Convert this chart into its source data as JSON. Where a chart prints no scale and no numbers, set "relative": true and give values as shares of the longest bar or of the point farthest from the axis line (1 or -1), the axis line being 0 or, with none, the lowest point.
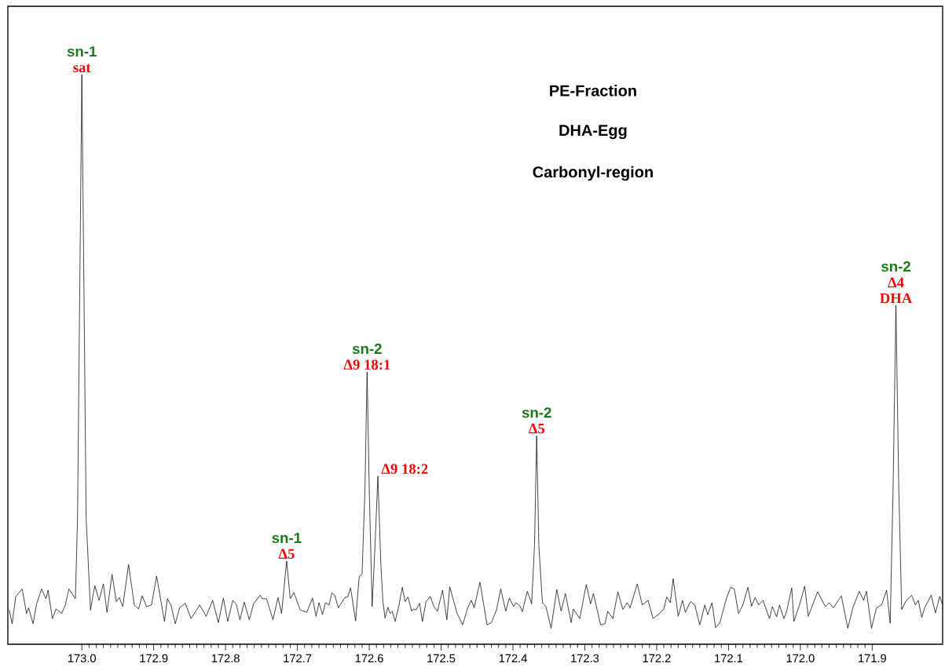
{
  "chart_data": {
    "type": "line",
    "relative": true,
    "title": "PE-Fraction",
    "subtitle": "DHA-Egg",
    "xlim": [
      173.103,
      171.802
    ],
    "xticks": [
      {
        "value": 173.0,
        "label": "173.0"
      },
      {
        "value": 172.9,
        "label": "172.9"
      },
      {
        "value": 172.8,
        "label": "172.8"
      },
      {
        "value": 172.7,
        "label": "172.7"
      },
      {
        "value": 172.6,
        "label": "172.6"
      },
      {
        "value": 172.5,
        "label": "172.5"
      },
      {
        "value": 172.4,
        "label": "172.4"
      },
      {
        "value": 172.3,
        "label": "172.3"
      },
      {
        "value": 172.2,
        "label": "172.2"
      },
      {
        "value": 172.1,
        "label": "172.1"
      },
      {
        "value": 172.0,
        "label": "172.0"
      },
      {
        "value": 171.9,
        "label": "171.9"
      }
    ],
    "x": [
      173.101,
      173.097,
      173.092,
      173.083,
      173.077,
      173.074,
      173.068,
      173.063,
      173.056,
      173.05,
      173.047,
      173.041,
      173.036,
      173.028,
      173.023,
      173.018,
      173.009,
      173.006,
      173.003,
      173.0,
      172.997,
      172.994,
      172.988,
      172.982,
      172.976,
      172.97,
      172.965,
      172.958,
      172.952,
      172.948,
      172.943,
      172.935,
      172.927,
      172.921,
      172.916,
      172.91,
      172.903,
      172.896,
      172.885,
      172.881,
      172.876,
      172.87,
      172.864,
      172.856,
      172.848,
      172.836,
      172.827,
      172.818,
      172.81,
      172.803,
      172.797,
      172.79,
      172.785,
      172.78,
      172.774,
      172.767,
      172.761,
      172.752,
      172.749,
      172.743,
      172.734,
      172.727,
      172.722,
      172.715,
      172.71,
      172.705,
      172.696,
      172.687,
      172.679,
      172.674,
      172.67,
      172.665,
      172.661,
      172.656,
      172.652,
      172.648,
      172.643,
      172.634,
      172.63,
      172.626,
      172.619,
      172.614,
      172.61,
      172.606,
      172.603,
      172.6,
      172.596,
      172.592,
      172.588,
      172.584,
      172.581,
      172.578,
      172.574,
      172.571,
      172.568,
      172.564,
      172.559,
      172.554,
      172.55,
      172.546,
      172.541,
      172.538,
      172.535,
      172.53,
      172.526,
      172.521,
      172.515,
      172.51,
      172.505,
      172.498,
      172.492,
      172.488,
      172.478,
      172.47,
      172.463,
      172.458,
      172.454,
      172.446,
      172.436,
      172.43,
      172.423,
      172.417,
      172.41,
      172.405,
      172.399,
      172.396,
      172.39,
      172.387,
      172.38,
      172.374,
      172.37,
      172.367,
      172.364,
      172.359,
      172.354,
      172.347,
      172.339,
      172.333,
      172.327,
      172.319,
      172.316,
      172.307,
      172.298,
      172.292,
      172.288,
      172.278,
      172.272,
      172.268,
      172.261,
      172.254,
      172.247,
      172.241,
      172.237,
      172.227,
      172.22,
      172.212,
      172.205,
      172.196,
      172.19,
      172.186,
      172.181,
      172.177,
      172.17,
      172.164,
      172.16,
      172.153,
      172.147,
      172.14,
      172.133,
      172.129,
      172.123,
      172.118,
      172.112,
      172.103,
      172.097,
      172.092,
      172.086,
      172.08,
      172.073,
      172.068,
      172.063,
      172.058,
      172.052,
      172.043,
      172.039,
      172.033,
      172.029,
      172.023,
      172.019,
      172.012,
      172.009,
      172.001,
      171.994,
      171.989,
      171.976,
      171.965,
      171.96,
      171.954,
      171.943,
      171.934,
      171.927,
      171.918,
      171.912,
      171.908,
      171.901,
      171.894,
      171.887,
      171.88,
      171.875,
      171.871,
      171.867,
      171.863,
      171.859,
      171.853,
      171.845,
      171.84,
      171.836,
      171.831,
      171.827,
      171.818,
      171.812,
      171.806,
      171.802
    ],
    "series": [
      {
        "color": "#000000",
        "values": [
          0.06,
          0.036,
          0.084,
          0.097,
          0.054,
          0.064,
          0.036,
          0.071,
          0.097,
          0.08,
          0.095,
          0.045,
          0.062,
          0.054,
          0.069,
          0.097,
          0.08,
          0.222,
          0.611,
          1.0,
          0.611,
          0.222,
          0.06,
          0.103,
          0.077,
          0.106,
          0.056,
          0.123,
          0.075,
          0.082,
          0.066,
          0.14,
          0.069,
          0.062,
          0.085,
          0.066,
          0.069,
          0.12,
          0.04,
          0.08,
          0.069,
          0.036,
          0.064,
          0.072,
          0.045,
          0.069,
          0.049,
          0.077,
          0.038,
          0.081,
          0.04,
          0.077,
          0.07,
          0.043,
          0.074,
          0.043,
          0.071,
          0.086,
          0.08,
          0.08,
          0.043,
          0.082,
          0.054,
          0.146,
          0.08,
          0.091,
          0.06,
          0.056,
          0.081,
          0.049,
          0.073,
          0.052,
          0.073,
          0.069,
          0.09,
          0.086,
          0.064,
          0.082,
          0.083,
          0.099,
          0.041,
          0.119,
          0.123,
          0.271,
          0.478,
          0.271,
          0.066,
          0.173,
          0.295,
          0.144,
          0.075,
          0.046,
          0.065,
          0.054,
          0.058,
          0.04,
          0.066,
          0.1,
          0.075,
          0.083,
          0.058,
          0.062,
          0.06,
          0.072,
          0.04,
          0.075,
          0.084,
          0.066,
          0.058,
          0.095,
          0.043,
          0.101,
          0.055,
          0.034,
          0.064,
          0.077,
          0.064,
          0.109,
          0.034,
          0.038,
          0.06,
          0.097,
          0.058,
          0.081,
          0.066,
          0.073,
          0.067,
          0.057,
          0.093,
          0.071,
          0.173,
          0.366,
          0.173,
          0.073,
          0.066,
          0.028,
          0.096,
          0.058,
          0.089,
          0.038,
          0.062,
          0.045,
          0.105,
          0.071,
          0.089,
          0.034,
          0.036,
          0.058,
          0.045,
          0.092,
          0.061,
          0.073,
          0.064,
          0.106,
          0.069,
          0.077,
          0.045,
          0.054,
          0.062,
          0.083,
          0.073,
          0.115,
          0.049,
          0.077,
          0.056,
          0.075,
          0.069,
          0.034,
          0.069,
          0.052,
          0.073,
          0.029,
          0.038,
          0.08,
          0.1,
          0.097,
          0.054,
          0.069,
          0.1,
          0.067,
          0.082,
          0.069,
          0.077,
          0.045,
          0.066,
          0.048,
          0.069,
          0.045,
          0.058,
          0.099,
          0.04,
          0.07,
          0.102,
          0.049,
          0.092,
          0.066,
          0.073,
          0.064,
          0.085,
          0.028,
          0.064,
          0.093,
          0.077,
          0.093,
          0.028,
          0.064,
          0.069,
          0.095,
          0.037,
          0.271,
          0.595,
          0.271,
          0.061,
          0.076,
          0.086,
          0.069,
          0.077,
          0.047,
          0.064,
          0.086,
          0.055,
          0.084,
          0.069
        ]
      }
    ],
    "annotations": [
      "Carbonyl-region",
      {
        "text": "sn-1",
        "x": 173.0,
        "y": 1.0
      },
      {
        "text": "sat",
        "x": 173.0,
        "y": 1.0
      },
      {
        "text": "sn-1",
        "x": 172.715,
        "y": 0.146
      },
      {
        "text": "Δ5",
        "x": 172.715,
        "y": 0.146
      },
      {
        "text": "sn-2",
        "x": 172.603,
        "y": 0.478
      },
      {
        "text": "Δ9 18:1",
        "x": 172.603,
        "y": 0.478
      },
      {
        "text": "Δ9 18:2",
        "x": 172.588,
        "y": 0.295
      },
      {
        "text": "sn-2",
        "x": 172.367,
        "y": 0.366
      },
      {
        "text": "Δ5",
        "x": 172.367,
        "y": 0.366
      },
      {
        "text": "sn-2",
        "x": 171.867,
        "y": 0.595
      },
      {
        "text": "Δ4",
        "x": 171.867,
        "y": 0.595
      },
      {
        "text": "DHA",
        "x": 171.867,
        "y": 0.595
      }
    ]
  }
}
